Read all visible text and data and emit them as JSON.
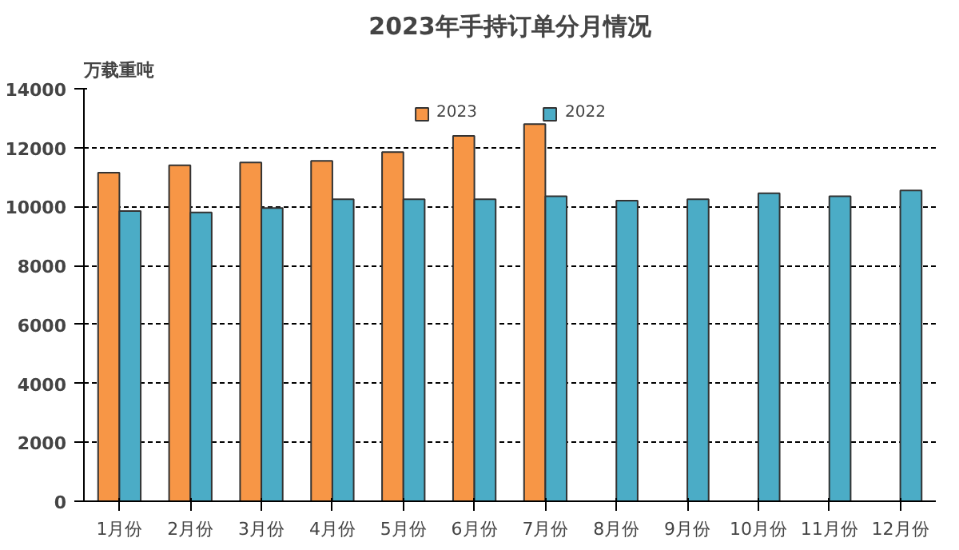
{
  "chart_data": {
    "type": "bar",
    "title": "2023年手持订单分月情况",
    "ylabel": "万载重吨",
    "categories": [
      "1月份",
      "2月份",
      "3月份",
      "4月份",
      "5月份",
      "6月份",
      "7月份",
      "8月份",
      "9月份",
      "10月份",
      "11月份",
      "12月份"
    ],
    "series": [
      {
        "name": "2023",
        "color": "#f79646",
        "values": [
          11150,
          11400,
          11500,
          11550,
          11850,
          12400,
          12800,
          null,
          null,
          null,
          null,
          null
        ]
      },
      {
        "name": "2022",
        "color": "#4bacc6",
        "values": [
          9850,
          9800,
          9950,
          10250,
          10250,
          10250,
          10350,
          10200,
          10250,
          10450,
          10350,
          10550
        ]
      }
    ],
    "ylim": [
      0,
      14000
    ],
    "yticks": [
      0,
      2000,
      4000,
      6000,
      8000,
      10000,
      12000,
      14000
    ],
    "grid": "y",
    "legend": "top"
  }
}
